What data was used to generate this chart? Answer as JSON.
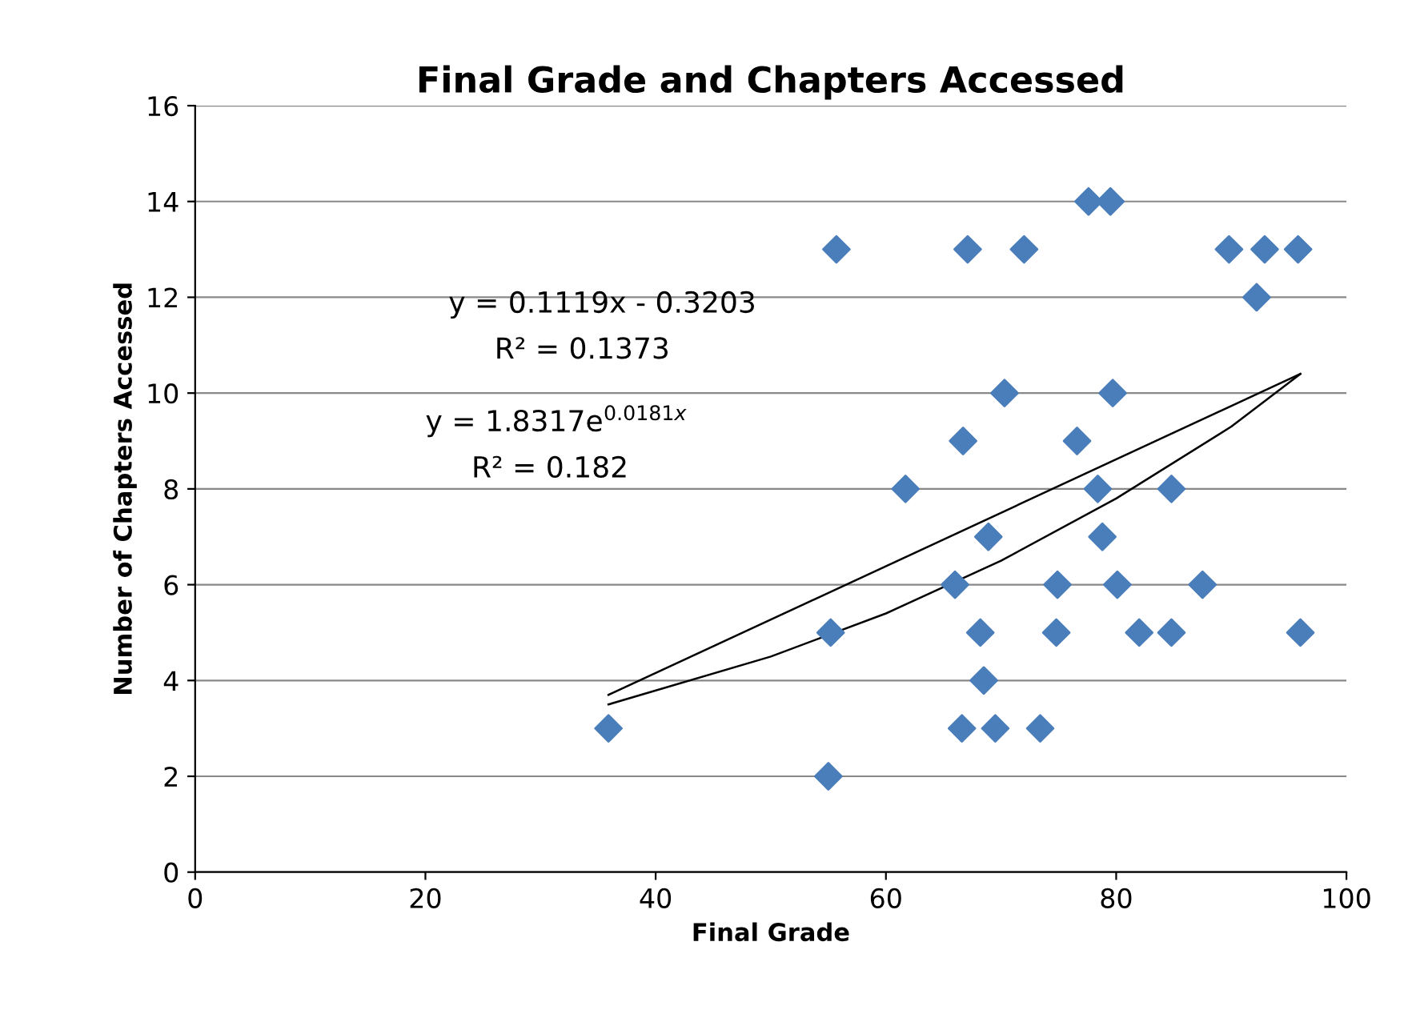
{
  "chart_data": {
    "type": "scatter",
    "title": "Final Grade and Chapters Accessed",
    "xlabel": "Final Grade",
    "ylabel": "Number of Chapters Accessed",
    "xlim": [
      0,
      100
    ],
    "xticks": [
      0,
      20,
      40,
      60,
      80,
      100
    ],
    "ylim": [
      0,
      16
    ],
    "yticks": [
      0,
      2,
      4,
      6,
      8,
      10,
      12,
      14,
      16
    ],
    "grid": "y",
    "legend": false,
    "annotations": [
      "y = 0.1119x - 0.3203",
      "R² = 0.1373",
      "y = 1.8317e$^{0.0181x}$",
      "R² = 0.182"
    ],
    "series": [
      {
        "color": "#4a7ebb",
        "marker": "diamond",
        "x": [
          35.9,
          55.0,
          55.2,
          55.7,
          61.7,
          66.0,
          66.6,
          66.7,
          67.1,
          68.2,
          68.5,
          68.9,
          69.5,
          70.3,
          72.0,
          73.4,
          74.8,
          74.9,
          76.6,
          77.6,
          78.4,
          78.8,
          79.5,
          79.7,
          80.1,
          82.0,
          84.8,
          84.8,
          87.5,
          89.8,
          92.2,
          92.9,
          95.8,
          96.0
        ],
        "values": [
          3,
          2,
          5,
          13,
          8,
          6,
          3,
          9,
          13,
          5,
          4,
          7,
          3,
          10,
          13,
          3,
          5,
          6,
          9,
          14,
          8,
          7,
          14,
          10,
          6,
          5,
          5,
          8,
          6,
          13,
          12,
          13,
          13,
          5
        ]
      },
      {
        "type": "line",
        "color": "#000000",
        "marker": "none",
        "line_style": "solid",
        "x": [
          35.9,
          96.0
        ],
        "values": [
          3.7,
          10.4
        ]
      },
      {
        "type": "line",
        "color": "#000000",
        "marker": "none",
        "line_style": "solid",
        "x": [
          35.9,
          50,
          60,
          70,
          80,
          90,
          96.0
        ],
        "values": [
          3.5,
          4.5,
          5.4,
          6.5,
          7.8,
          9.3,
          10.4
        ]
      }
    ]
  }
}
